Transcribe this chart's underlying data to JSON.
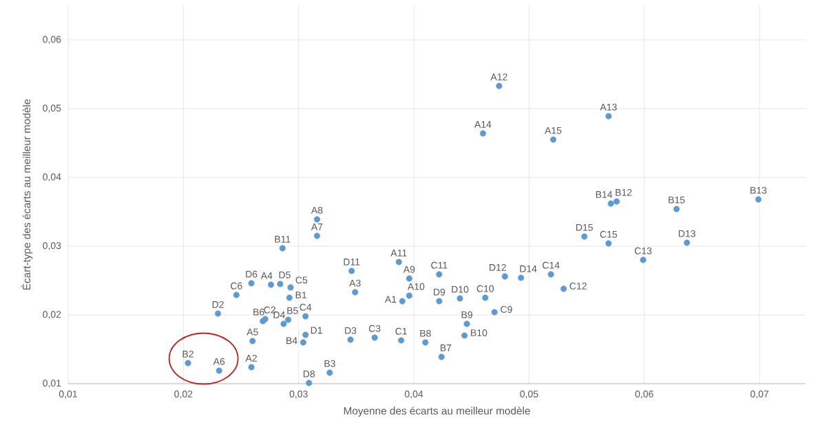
{
  "chart_data": {
    "type": "scatter",
    "xlabel": "Moyenne des écarts au meilleur modèle",
    "ylabel": "Écart-type des écarts au meilleur modèle",
    "x": [
      0.0204,
      0.0231,
      0.0259,
      0.026,
      0.023,
      0.0246,
      0.0259,
      0.0276,
      0.0284,
      0.0293,
      0.0292,
      0.0269,
      0.0271,
      0.0287,
      0.0291,
      0.0306,
      0.0306,
      0.0304,
      0.0309,
      0.0327,
      0.0286,
      0.0316,
      0.0316,
      0.0346,
      0.0349,
      0.0345,
      0.0366,
      0.0389,
      0.0387,
      0.039,
      0.0396,
      0.0396,
      0.0422,
      0.0422,
      0.044,
      0.0462,
      0.047,
      0.0446,
      0.0444,
      0.041,
      0.0424,
      0.0479,
      0.0493,
      0.0519,
      0.053,
      0.0474,
      0.046,
      0.0521,
      0.0569,
      0.0571,
      0.0576,
      0.0548,
      0.0569,
      0.0599,
      0.0628,
      0.0637,
      0.0699
    ],
    "values": [
      0.013,
      0.0119,
      0.0124,
      0.0162,
      0.0202,
      0.0229,
      0.0246,
      0.0244,
      0.0245,
      0.024,
      0.0225,
      0.0191,
      0.0194,
      0.0187,
      0.0193,
      0.0198,
      0.0171,
      0.016,
      0.0101,
      0.0116,
      0.0297,
      0.0339,
      0.0315,
      0.0264,
      0.0233,
      0.0164,
      0.0167,
      0.0163,
      0.0277,
      0.022,
      0.0253,
      0.0228,
      0.0259,
      0.022,
      0.0224,
      0.0225,
      0.0204,
      0.0187,
      0.017,
      0.016,
      0.0139,
      0.0256,
      0.0254,
      0.0259,
      0.0238,
      0.0533,
      0.0464,
      0.0455,
      0.0489,
      0.0362,
      0.0365,
      0.0314,
      0.0304,
      0.028,
      0.0354,
      0.0305,
      0.0368
    ],
    "color": "#5b9bd5",
    "marker": "circle",
    "grid": true,
    "xlim": [
      0.01,
      0.074
    ],
    "ylim": [
      0.01,
      0.065
    ],
    "xticks": [
      {
        "value": 0.01,
        "label": "0,01"
      },
      {
        "value": 0.02,
        "label": "0,02"
      },
      {
        "value": 0.03,
        "label": "0,03"
      },
      {
        "value": 0.04,
        "label": "0,04"
      },
      {
        "value": 0.05,
        "label": "0,05"
      },
      {
        "value": 0.06,
        "label": "0,06"
      },
      {
        "value": 0.07,
        "label": "0,07"
      }
    ],
    "yticks": [
      {
        "value": 0.01,
        "label": "0,01"
      },
      {
        "value": 0.02,
        "label": "0,02"
      },
      {
        "value": 0.03,
        "label": "0,03"
      },
      {
        "value": 0.04,
        "label": "0,04"
      },
      {
        "value": 0.05,
        "label": "0,05"
      },
      {
        "value": 0.06,
        "label": "0,06"
      }
    ],
    "annotations": [
      {
        "text": "B2",
        "x": 0.0204,
        "y": 0.013
      },
      {
        "text": "A6",
        "x": 0.0231,
        "y": 0.0119
      },
      {
        "text": "A2",
        "x": 0.0259,
        "y": 0.0124
      },
      {
        "text": "A5",
        "x": 0.026,
        "y": 0.0162
      },
      {
        "text": "D2",
        "x": 0.023,
        "y": 0.0202
      },
      {
        "text": "C6",
        "x": 0.0246,
        "y": 0.0229
      },
      {
        "text": "D6",
        "x": 0.0259,
        "y": 0.0246
      },
      {
        "text": "A4",
        "x": 0.0276,
        "y": 0.0244
      },
      {
        "text": "D5",
        "x": 0.0284,
        "y": 0.0245
      },
      {
        "text": "C5",
        "x": 0.0293,
        "y": 0.024
      },
      {
        "text": "B1",
        "x": 0.0292,
        "y": 0.0225
      },
      {
        "text": "B6",
        "x": 0.0269,
        "y": 0.0191
      },
      {
        "text": "C2",
        "x": 0.0271,
        "y": 0.0194
      },
      {
        "text": "D4",
        "x": 0.0287,
        "y": 0.0187
      },
      {
        "text": "B5",
        "x": 0.0291,
        "y": 0.0193
      },
      {
        "text": "C4",
        "x": 0.0306,
        "y": 0.0198
      },
      {
        "text": "D1",
        "x": 0.0306,
        "y": 0.0171
      },
      {
        "text": "B4",
        "x": 0.0304,
        "y": 0.016
      },
      {
        "text": "D8",
        "x": 0.0309,
        "y": 0.0101
      },
      {
        "text": "B3",
        "x": 0.0327,
        "y": 0.0116
      },
      {
        "text": "B11",
        "x": 0.0286,
        "y": 0.0297
      },
      {
        "text": "A8",
        "x": 0.0316,
        "y": 0.0339
      },
      {
        "text": "A7",
        "x": 0.0316,
        "y": 0.0315
      },
      {
        "text": "D11",
        "x": 0.0346,
        "y": 0.0264
      },
      {
        "text": "A3",
        "x": 0.0349,
        "y": 0.0233
      },
      {
        "text": "D3",
        "x": 0.0345,
        "y": 0.0164
      },
      {
        "text": "C3",
        "x": 0.0366,
        "y": 0.0167
      },
      {
        "text": "C1",
        "x": 0.0389,
        "y": 0.0163
      },
      {
        "text": "A11",
        "x": 0.0387,
        "y": 0.0277
      },
      {
        "text": "A1",
        "x": 0.039,
        "y": 0.022
      },
      {
        "text": "A9",
        "x": 0.0396,
        "y": 0.0253
      },
      {
        "text": "A10",
        "x": 0.0396,
        "y": 0.0228
      },
      {
        "text": "C11",
        "x": 0.0422,
        "y": 0.0259
      },
      {
        "text": "D9",
        "x": 0.0422,
        "y": 0.022
      },
      {
        "text": "D10",
        "x": 0.044,
        "y": 0.0224
      },
      {
        "text": "C10",
        "x": 0.0462,
        "y": 0.0225
      },
      {
        "text": "C9",
        "x": 0.047,
        "y": 0.0204
      },
      {
        "text": "B9",
        "x": 0.0446,
        "y": 0.0187
      },
      {
        "text": "B10",
        "x": 0.0444,
        "y": 0.017
      },
      {
        "text": "B8",
        "x": 0.041,
        "y": 0.016
      },
      {
        "text": "B7",
        "x": 0.0424,
        "y": 0.0139
      },
      {
        "text": "D12",
        "x": 0.0479,
        "y": 0.0256
      },
      {
        "text": "D14",
        "x": 0.0493,
        "y": 0.0254
      },
      {
        "text": "C14",
        "x": 0.0519,
        "y": 0.0259
      },
      {
        "text": "C12",
        "x": 0.053,
        "y": 0.0238
      },
      {
        "text": "A12",
        "x": 0.0474,
        "y": 0.0533
      },
      {
        "text": "A14",
        "x": 0.046,
        "y": 0.0464
      },
      {
        "text": "A15",
        "x": 0.0521,
        "y": 0.0455
      },
      {
        "text": "A13",
        "x": 0.0569,
        "y": 0.0489
      },
      {
        "text": "B14",
        "x": 0.0571,
        "y": 0.0362
      },
      {
        "text": "B12",
        "x": 0.0576,
        "y": 0.0365
      },
      {
        "text": "D15",
        "x": 0.0548,
        "y": 0.0314
      },
      {
        "text": "C15",
        "x": 0.0569,
        "y": 0.0304
      },
      {
        "text": "C13",
        "x": 0.0599,
        "y": 0.028
      },
      {
        "text": "B15",
        "x": 0.0628,
        "y": 0.0354
      },
      {
        "text": "D13",
        "x": 0.0637,
        "y": 0.0305
      },
      {
        "text": "B13",
        "x": 0.0699,
        "y": 0.0368
      }
    ]
  }
}
